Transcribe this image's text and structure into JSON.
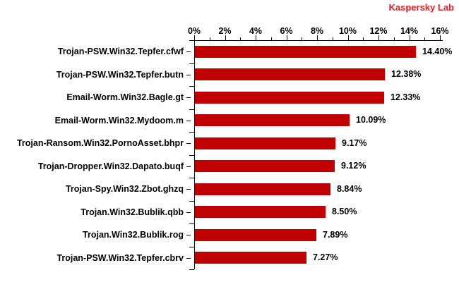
{
  "branding": {
    "label": "Kaspersky Lab",
    "color": "#ED1C24"
  },
  "chart_data": {
    "type": "bar",
    "orientation": "horizontal",
    "title": "",
    "categories": [
      "Trojan-PSW.Win32.Tepfer.cfwf",
      "Trojan-PSW.Win32.Tepfer.butn",
      "Email-Worm.Win32.Bagle.gt",
      "Email-Worm.Win32.Mydoom.m",
      "Trojan-Ransom.Win32.PornoAsset.bhpr",
      "Trojan-Dropper.Win32.Dapato.buqf",
      "Trojan-Spy.Win32.Zbot.ghzq",
      "Trojan.Win32.Bublik.qbb",
      "Trojan.Win32.Bublik.rog",
      "Trojan-PSW.Win32.Tepfer.cbrv"
    ],
    "values": [
      14.4,
      12.38,
      12.33,
      10.09,
      9.17,
      9.12,
      8.84,
      8.5,
      7.89,
      7.27
    ],
    "value_labels": [
      "14.40%",
      "12.38%",
      "12.33%",
      "10.09%",
      "9.17%",
      "9.12%",
      "8.84%",
      "8.50%",
      "7.89%",
      "7.27%"
    ],
    "xlabel": "",
    "ylabel": "",
    "xlim": [
      0,
      16
    ],
    "x_tick_labels": [
      "0%",
      "2%",
      "4%",
      "6%",
      "8%",
      "10%",
      "12%",
      "14%",
      "16%"
    ],
    "x_major_step": 2,
    "x_minor_step": 1,
    "bar_color": "#C00000",
    "axis_color": "#000000",
    "grid": false,
    "legend": false
  }
}
